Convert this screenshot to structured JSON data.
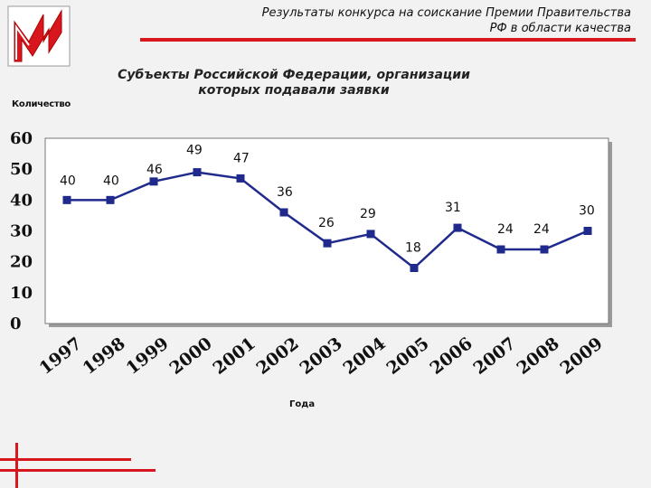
{
  "header": {
    "title_line1": "Результаты конкурса на соискание Премии Правительства",
    "title_line2": "РФ в области качества"
  },
  "subtitle": {
    "line1": "Субъекты Российской Федерации, организации",
    "line2": "которых подавали заявки"
  },
  "colors": {
    "accent": "#d8161e",
    "series": "#1f2a8c",
    "plot_background": "#ffffff"
  },
  "logo": {
    "icon": "stylized-m-logo-icon"
  },
  "chart_data": {
    "type": "line",
    "ylabel": "Количество",
    "xlabel": "Года",
    "x": [
      "1997",
      "1998",
      "1999",
      "2000",
      "2001",
      "2002",
      "2003",
      "2004",
      "2005",
      "2006",
      "2007",
      "2008",
      "2009"
    ],
    "y_ticks": [
      "0",
      "10",
      "20",
      "30",
      "40",
      "50",
      "60"
    ],
    "ylim": [
      0,
      60
    ],
    "grid": false,
    "legend": "none",
    "series": [
      {
        "values": [
          40,
          40,
          46,
          49,
          47,
          36,
          26,
          29,
          18,
          31,
          24,
          24,
          30
        ]
      }
    ],
    "data_labels": [
      "40",
      "40",
      "46",
      "49",
      "47",
      "36",
      "26",
      "29",
      "18",
      "31",
      "24",
      "24",
      "30"
    ]
  }
}
